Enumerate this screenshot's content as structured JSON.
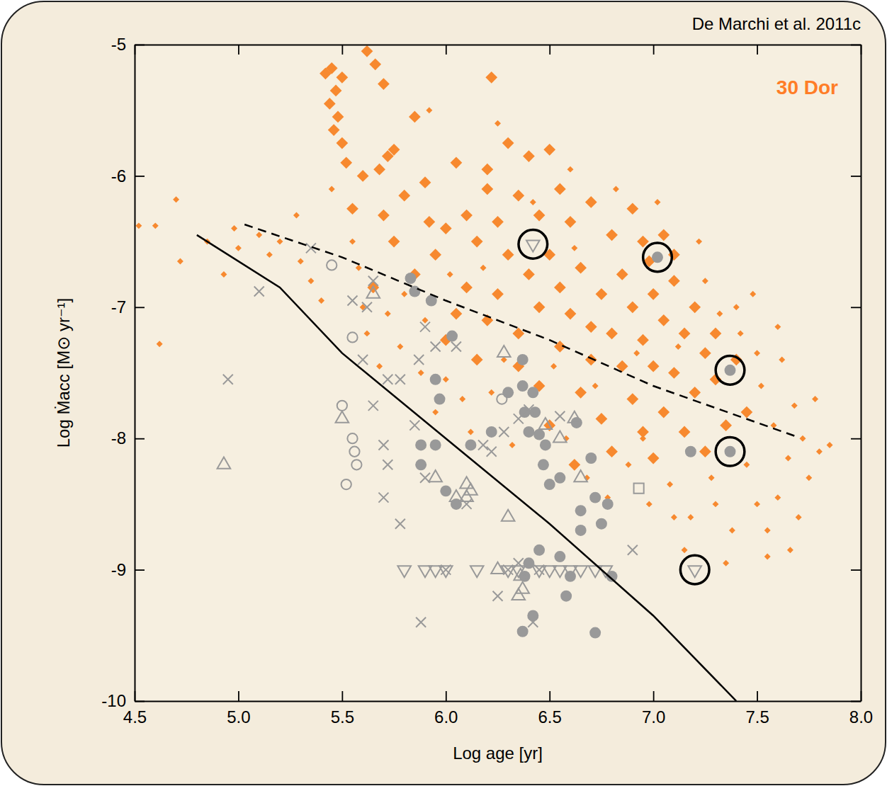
{
  "chart_data": {
    "type": "scatter",
    "title": "De Marchi et al. 2011c",
    "annotations": [
      {
        "text": "30 Dor",
        "color": "#ff7d27"
      }
    ],
    "x_label": "Log age [yr]",
    "y_label": "Log Ṁacc [M⊙ yr⁻¹]",
    "xlim": [
      4.5,
      8.0
    ],
    "ylim": [
      -10,
      -5
    ],
    "xticks": [
      4.5,
      {
        "value": 5,
        "label": "5.0"
      },
      5.5,
      {
        "value": 6,
        "label": "6.0"
      },
      6.5,
      {
        "value": 7,
        "label": "7.0"
      },
      7.5,
      {
        "value": 8,
        "label": "8.0"
      }
    ],
    "yticks": [
      -10,
      -9,
      -8,
      -7,
      -6,
      -5
    ],
    "series": [
      {
        "type": "scatter",
        "color": "#f7892f",
        "marker": "diamond",
        "x": [
          5.42,
          5.45,
          5.5,
          5.47,
          5.44,
          5.48,
          5.46,
          5.5,
          5.52,
          5.62,
          5.66,
          5.7,
          5.85,
          5.75,
          5.72,
          5.68,
          5.6,
          5.55,
          5.8,
          5.9,
          6.05,
          6.2,
          6.22,
          6.3,
          6.4,
          6.5,
          6.55,
          6.35,
          6.1,
          6.0,
          5.95,
          6.15,
          6.25,
          6.45,
          6.6,
          6.7,
          6.8,
          6.9,
          6.95,
          7.05,
          6.3,
          6.4,
          6.5,
          6.55,
          6.65,
          6.75,
          6.85,
          6.9,
          7.0,
          7.1,
          6.45,
          6.6,
          6.7,
          6.8,
          6.95,
          7.05,
          7.15,
          7.2,
          6.35,
          6.55,
          6.7,
          6.85,
          7.0,
          7.1,
          7.25,
          7.3,
          6.2,
          6.1,
          6.05,
          6.25,
          5.85,
          5.75,
          5.7,
          5.65,
          6.0,
          6.15,
          6.45,
          6.65,
          6.9,
          7.05,
          7.2,
          7.3,
          7.4,
          7.15,
          6.95,
          6.75,
          6.5,
          6.35,
          7.25,
          7.0,
          6.8,
          7.45,
          7.35,
          6.62,
          7.1,
          6.98,
          6.2,
          5.92
        ],
        "values": [
          -5.22,
          -5.18,
          -5.25,
          -5.35,
          -5.45,
          -5.55,
          -5.65,
          -5.75,
          -5.9,
          -5.05,
          -5.15,
          -5.3,
          -5.55,
          -5.8,
          -5.85,
          -5.95,
          -6.0,
          -6.25,
          -6.15,
          -6.05,
          -5.9,
          -5.95,
          -5.25,
          -5.75,
          -5.85,
          -5.8,
          -6.1,
          -6.15,
          -6.3,
          -6.4,
          -6.6,
          -6.5,
          -6.35,
          -6.3,
          -6.35,
          -6.2,
          -6.45,
          -6.25,
          -6.5,
          -6.45,
          -6.6,
          -6.75,
          -6.6,
          -6.85,
          -6.7,
          -6.9,
          -6.75,
          -7.0,
          -6.9,
          -6.8,
          -7.0,
          -7.05,
          -7.15,
          -7.2,
          -7.25,
          -7.1,
          -7.2,
          -7.0,
          -7.2,
          -7.3,
          -7.4,
          -7.45,
          -7.45,
          -7.5,
          -7.35,
          -7.2,
          -7.1,
          -6.85,
          -7.05,
          -6.9,
          -6.75,
          -6.5,
          -6.3,
          -6.85,
          -7.25,
          -7.4,
          -7.6,
          -7.65,
          -7.7,
          -7.8,
          -7.65,
          -7.55,
          -7.4,
          -7.95,
          -7.95,
          -7.85,
          -7.9,
          -7.45,
          -8.1,
          -8.15,
          -8.1,
          -7.8,
          -7.9,
          -8.2,
          -6.6,
          -6.65,
          -6.1,
          -6.35
        ]
      },
      {
        "type": "scatter",
        "color": "#f7892f",
        "marker": "small-diamond",
        "x": [
          4.6,
          4.7,
          4.72,
          4.85,
          4.98,
          5.0,
          5.1,
          5.15,
          5.2,
          5.28,
          5.3,
          5.35,
          5.4,
          5.45,
          5.55,
          5.58,
          5.6,
          5.62,
          5.68,
          5.72,
          5.78,
          5.8,
          5.88,
          5.9,
          5.95,
          6.0,
          6.02,
          6.08,
          6.12,
          6.18,
          6.22,
          6.28,
          6.32,
          6.38,
          6.42,
          6.48,
          6.52,
          6.58,
          6.62,
          6.68,
          6.72,
          6.78,
          6.82,
          6.88,
          6.92,
          6.98,
          7.02,
          7.08,
          7.12,
          7.18,
          7.22,
          7.28,
          7.32,
          7.38,
          7.42,
          7.45,
          7.48,
          7.5,
          7.52,
          7.55,
          7.58,
          7.6,
          7.62,
          7.65,
          7.68,
          7.7,
          7.72,
          7.75,
          7.78,
          7.8,
          7.35,
          7.3,
          7.15,
          7.55,
          7.4,
          7.25,
          7.6,
          6.6,
          6.25,
          5.92,
          7.85,
          7.5,
          7.66,
          7.1,
          6.95,
          4.93,
          4.52,
          4.62
        ],
        "values": [
          -6.38,
          -6.18,
          -6.65,
          -6.5,
          -6.4,
          -6.55,
          -6.45,
          -6.6,
          -6.5,
          -6.3,
          -6.65,
          -6.8,
          -6.95,
          -6.1,
          -6.5,
          -6.7,
          -7.0,
          -7.2,
          -7.45,
          -7.05,
          -7.3,
          -6.9,
          -7.5,
          -7.1,
          -7.8,
          -7.55,
          -6.75,
          -7.7,
          -7.95,
          -6.7,
          -7.65,
          -7.4,
          -8.05,
          -7.8,
          -6.2,
          -8.2,
          -7.45,
          -8.0,
          -6.55,
          -8.3,
          -7.6,
          -8.45,
          -6.1,
          -8.2,
          -7.35,
          -8.5,
          -6.2,
          -8.35,
          -7.3,
          -8.6,
          -6.5,
          -8.3,
          -7.05,
          -8.7,
          -7.2,
          -8.2,
          -6.9,
          -8.5,
          -7.6,
          -8.7,
          -7.9,
          -8.45,
          -7.4,
          -8.15,
          -7.75,
          -8.6,
          -8.0,
          -8.3,
          -7.7,
          -8.1,
          -8.95,
          -8.5,
          -8.85,
          -8.9,
          -7.0,
          -6.8,
          -7.15,
          -5.95,
          -5.6,
          -5.5,
          -8.05,
          -7.35,
          -8.85,
          -8.6,
          -8.0,
          -6.75,
          -6.38,
          -7.28
        ]
      },
      {
        "type": "scatter",
        "color": "#999999",
        "marker": "circle",
        "x": [
          5.83,
          5.85,
          5.93,
          5.95,
          5.97,
          6.03,
          5.88,
          5.88,
          5.95,
          6.0,
          6.05,
          6.12,
          6.22,
          6.3,
          6.37,
          6.37,
          6.38,
          6.42,
          6.43,
          6.45,
          6.4,
          6.48,
          6.5,
          6.55,
          6.47,
          6.63,
          6.7,
          6.72,
          6.75,
          6.78,
          6.65,
          6.65,
          6.55,
          6.45,
          6.4,
          6.38,
          6.42,
          6.37,
          6.6,
          6.58,
          6.72,
          6.8,
          7.02,
          7.37,
          7.37,
          7.18
        ],
        "values": [
          -6.78,
          -6.88,
          -6.95,
          -7.55,
          -7.7,
          -7.22,
          -8.05,
          -8.2,
          -8.05,
          -8.4,
          -8.5,
          -8.05,
          -7.95,
          -7.65,
          -7.4,
          -7.6,
          -7.8,
          -7.65,
          -7.8,
          -7.97,
          -7.95,
          -8.05,
          -8.35,
          -8.3,
          -8.2,
          -7.88,
          -8.15,
          -8.45,
          -8.65,
          -8.5,
          -8.55,
          -8.7,
          -8.9,
          -8.85,
          -8.95,
          -9.05,
          -9.35,
          -9.47,
          -9.05,
          -9.2,
          -9.48,
          -9.05,
          -6.62,
          -7.48,
          -8.1,
          -8.1
        ]
      },
      {
        "type": "scatter",
        "color": "#999999",
        "marker": "circle-open",
        "x": [
          5.45,
          5.55,
          5.5,
          5.55,
          5.56,
          5.57,
          5.52,
          6.27
        ],
        "values": [
          -6.68,
          -7.23,
          -7.75,
          -8.0,
          -8.1,
          -8.2,
          -8.35,
          -7.7
        ]
      },
      {
        "type": "scatter",
        "color": "#999999",
        "marker": "cross",
        "x": [
          5.1,
          4.95,
          5.35,
          5.55,
          5.6,
          5.62,
          5.65,
          5.72,
          5.78,
          5.85,
          5.7,
          5.72,
          5.65,
          5.9,
          5.95,
          5.9,
          5.88,
          5.7,
          5.78,
          6.05,
          6.1,
          6.18,
          6.22,
          6.28,
          6.35,
          6.4,
          6.45,
          6.3,
          6.25,
          6.0,
          6.55,
          6.9,
          6.42,
          5.87,
          6.35
        ],
        "values": [
          -6.88,
          -7.55,
          -6.55,
          -6.95,
          -7.4,
          -7.0,
          -6.8,
          -7.55,
          -7.55,
          -7.9,
          -8.05,
          -8.2,
          -7.75,
          -7.15,
          -7.3,
          -8.3,
          -9.4,
          -8.45,
          -8.65,
          -7.3,
          -8.5,
          -8.05,
          -8.1,
          -7.95,
          -7.85,
          -7.78,
          -9.0,
          -9.0,
          -9.2,
          -9.0,
          -7.83,
          -8.85,
          -9.4,
          -7.4,
          -8.95
        ]
      },
      {
        "type": "scatter",
        "color": "#999999",
        "marker": "triangle-up",
        "x": [
          4.93,
          5.5,
          5.65,
          5.95,
          6.1,
          6.05,
          6.12,
          6.28,
          6.48,
          6.55,
          6.62,
          6.65,
          6.3,
          6.25,
          6.37,
          6.36,
          6.35,
          6.1
        ],
        "values": [
          -8.2,
          -7.85,
          -6.9,
          -8.3,
          -8.35,
          -8.45,
          -8.4,
          -7.35,
          -7.9,
          -8.0,
          -7.85,
          -8.3,
          -8.6,
          -9.0,
          -9.15,
          -9.05,
          -9.2,
          -8.45
        ]
      },
      {
        "type": "scatter",
        "color": "#999999",
        "marker": "triangle-down",
        "x": [
          5.8,
          5.9,
          5.95,
          6.0,
          6.15,
          6.3,
          6.45,
          6.5,
          6.55,
          6.6,
          6.65,
          6.72,
          6.77,
          6.42,
          7.2,
          6.35
        ],
        "values": [
          -9.0,
          -9.0,
          -9.0,
          -9.0,
          -9.0,
          -9.0,
          -9.0,
          -9.0,
          -9.0,
          -9.0,
          -9.0,
          -9.0,
          -9.0,
          -6.52,
          -9.0,
          -9.0
        ]
      },
      {
        "type": "scatter",
        "color": "#999999",
        "marker": "square-open",
        "x": [
          6.93
        ],
        "values": [
          -8.38
        ]
      },
      {
        "type": "line",
        "color": "#000000",
        "line_style": "solid",
        "x": [
          4.8,
          5.2,
          5.5,
          6.0,
          6.5,
          7.0,
          7.4
        ],
        "values": [
          -6.45,
          -6.85,
          -7.35,
          -8.0,
          -8.65,
          -9.35,
          -10.0
        ]
      },
      {
        "type": "line",
        "color": "#000000",
        "line_style": "dashed",
        "x": [
          5.03,
          5.5,
          6.0,
          6.5,
          7.0,
          7.68
        ],
        "values": [
          -6.37,
          -6.62,
          -6.95,
          -7.25,
          -7.6,
          -7.98
        ]
      },
      {
        "type": "scatter",
        "color": "#000000",
        "marker": "ring",
        "x": [
          6.42,
          7.02,
          7.37,
          7.37,
          7.2
        ],
        "values": [
          -6.52,
          -6.62,
          -7.48,
          -8.1,
          -9.0
        ]
      }
    ]
  }
}
